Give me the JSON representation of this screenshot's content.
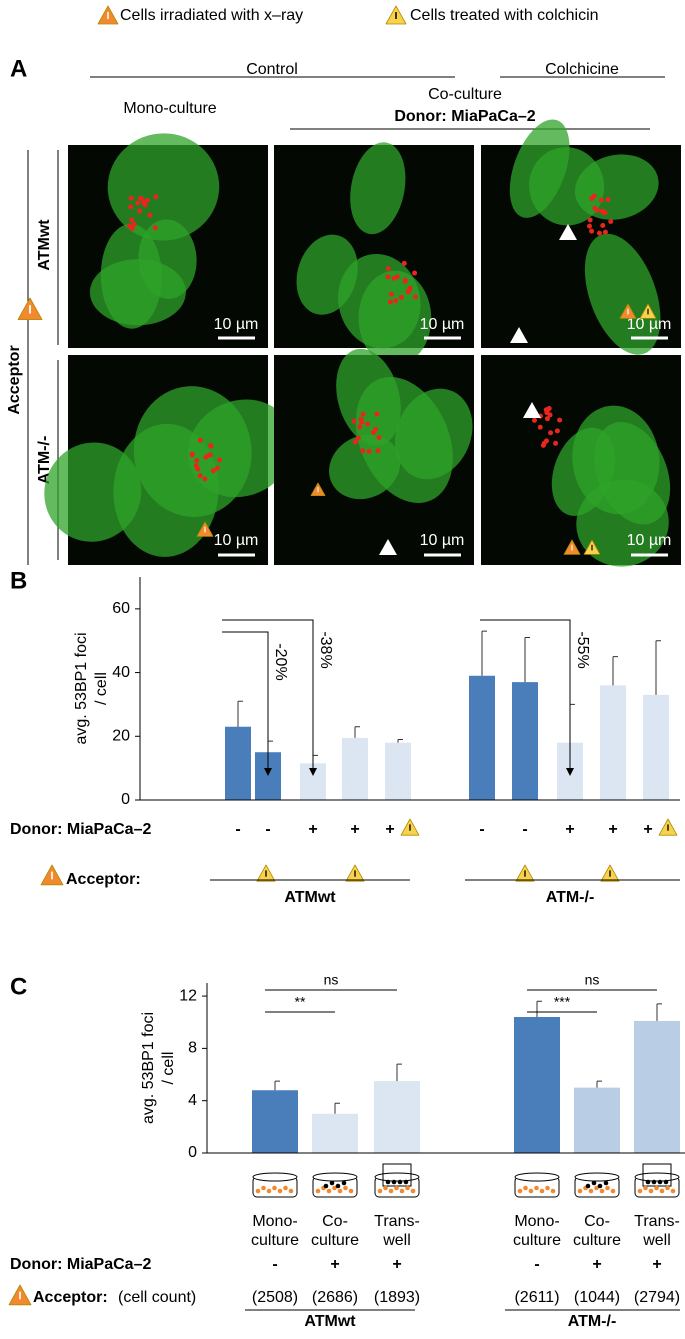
{
  "legend": {
    "xray": "Cells irradiated with x–ray",
    "colchicin": "Cells treated with colchicin"
  },
  "panel_a": {
    "label": "A",
    "control": "Control",
    "colchicine": "Colchicine",
    "mono": "Mono-culture",
    "coculture": "Co-culture",
    "donor": "Donor: MiaPaCa–2",
    "acceptor": "Acceptor",
    "rows": [
      "ATMwt",
      "ATM-/-"
    ],
    "scale_bar": "10 µm"
  },
  "chart_data": [
    {
      "type": "bar",
      "label": "B",
      "y_label": [
        "avg. 53BP1 foci",
        "/ cell"
      ],
      "ylim": [
        0,
        70
      ],
      "yticks": [
        0,
        20,
        40,
        60
      ],
      "categories": [
        "-",
        "-",
        "+",
        "+",
        "+",
        "-",
        "-",
        "+",
        "+",
        "+"
      ],
      "values": [
        23,
        15,
        11.5,
        19.5,
        18,
        39,
        37,
        18,
        36,
        33
      ],
      "errors": [
        8,
        3.5,
        2.5,
        3.5,
        1,
        14,
        14,
        12,
        9,
        17
      ],
      "colors": [
        "#4a7ebb",
        "#4a7ebb",
        "#dce6f2",
        "#dce6f2",
        "#dce6f2",
        "#4a7ebb",
        "#4a7ebb",
        "#dce6f2",
        "#dce6f2",
        "#dce6f2"
      ],
      "annotations": [
        "-20%",
        "-38%",
        "-55%"
      ],
      "donor_label": "Donor: MiaPaCa–2",
      "acceptor_label": "Acceptor:",
      "groups": [
        "ATMwt",
        "ATM-/-"
      ]
    },
    {
      "type": "bar",
      "label": "C",
      "y_label": [
        "avg. 53BP1 foci",
        "/ cell"
      ],
      "ylim": [
        0,
        13
      ],
      "yticks": [
        0,
        4,
        8,
        12
      ],
      "categories": [
        [
          "Mono-",
          "culture"
        ],
        [
          "Co-",
          "culture"
        ],
        [
          "Trans-",
          "well"
        ],
        [
          "Mono-",
          "culture"
        ],
        [
          "Co-",
          "culture"
        ],
        [
          "Trans-",
          "well"
        ]
      ],
      "values": [
        4.8,
        3.0,
        5.5,
        10.4,
        5.0,
        10.1
      ],
      "errors": [
        0.7,
        0.8,
        1.3,
        1.2,
        0.5,
        1.3
      ],
      "colors": [
        "#4a7ebb",
        "#dce6f2",
        "#dce6f2",
        "#4a7ebb",
        "#b9cde5",
        "#b9cde5"
      ],
      "donor": [
        "-",
        "+",
        "+",
        "-",
        "+",
        "+"
      ],
      "cell_counts": [
        "(2508)",
        "(2686)",
        "(1893)",
        "(2611)",
        "(1044)",
        "(2794)"
      ],
      "significance": [
        "**",
        "ns",
        "***",
        "ns"
      ],
      "donor_label": "Donor: MiaPaCa–2",
      "acceptor_label": "Acceptor:",
      "cell_count_label": "(cell count)",
      "groups": [
        "ATMwt",
        "ATM-/-"
      ]
    }
  ]
}
